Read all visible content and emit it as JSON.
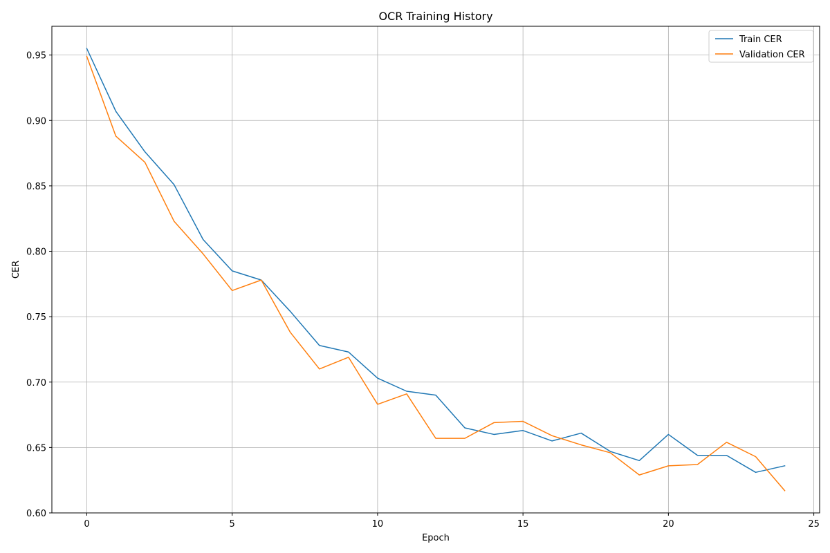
{
  "chart_data": {
    "type": "line",
    "title": "OCR Training History",
    "xlabel": "Epoch",
    "ylabel": "CER",
    "xlim": [
      -1.2,
      25.2
    ],
    "ylim": [
      0.6,
      0.972
    ],
    "xticks": [
      0,
      5,
      10,
      15,
      20,
      25
    ],
    "yticks": [
      0.6,
      0.65,
      0.7,
      0.75,
      0.8,
      0.85,
      0.9,
      0.95
    ],
    "xtick_labels": [
      "0",
      "5",
      "10",
      "15",
      "20",
      "25"
    ],
    "ytick_labels": [
      "0.60",
      "0.65",
      "0.70",
      "0.75",
      "0.80",
      "0.85",
      "0.90",
      "0.95"
    ],
    "grid": true,
    "legend_position": "top-right",
    "x": [
      0,
      1,
      2,
      3,
      4,
      5,
      6,
      7,
      8,
      9,
      10,
      11,
      12,
      13,
      14,
      15,
      16,
      17,
      18,
      19,
      20,
      21,
      22,
      23,
      24
    ],
    "series": [
      {
        "name": "Train CER",
        "color": "#1f77b4",
        "values": [
          0.955,
          0.907,
          0.876,
          0.851,
          0.809,
          0.785,
          0.778,
          0.754,
          0.728,
          0.723,
          0.703,
          0.693,
          0.69,
          0.665,
          0.66,
          0.663,
          0.655,
          0.661,
          0.647,
          0.64,
          0.66,
          0.644,
          0.644,
          0.631,
          0.636
        ]
      },
      {
        "name": "Validation CER",
        "color": "#ff7f0e",
        "values": [
          0.949,
          0.888,
          0.868,
          0.823,
          0.798,
          0.77,
          0.778,
          0.738,
          0.71,
          0.719,
          0.683,
          0.691,
          0.657,
          0.657,
          0.669,
          0.67,
          0.659,
          0.652,
          0.646,
          0.629,
          0.636,
          0.637,
          0.654,
          0.643,
          0.617
        ]
      }
    ]
  }
}
